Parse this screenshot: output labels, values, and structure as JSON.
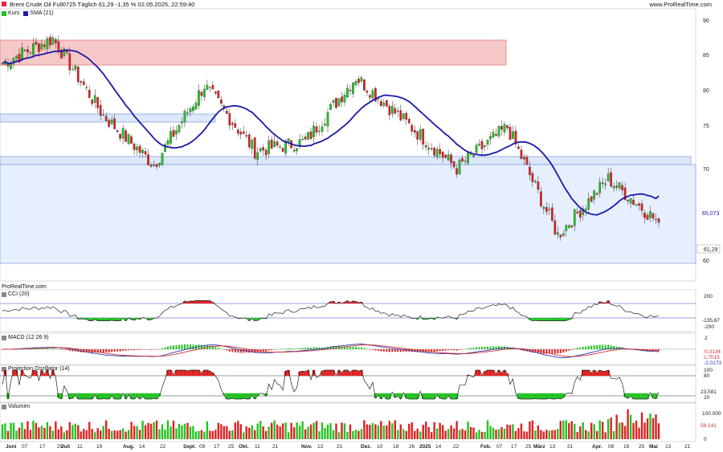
{
  "header": {
    "title": "Brent Crude Oil Full0725 Täglich 61,29 -1,35 % 02.05.2025, 22:59:40",
    "brand": "www.ProRealTime.com",
    "source_label": "ProRealTime.com"
  },
  "colors": {
    "up": "#22c322",
    "down": "#e02020",
    "sma": "#1a1aa8",
    "cci": "#222222",
    "macd": "#2a3aa8",
    "signal": "#d03030",
    "zone_red": "#f7c8c8",
    "zone_blue": "#dde8fb"
  },
  "x_axis": {
    "months": [
      {
        "label": "Juni",
        "ticks": [
          "07",
          "17",
          "25"
        ]
      },
      {
        "label": "Juli",
        "ticks": [
          "11",
          "19"
        ]
      },
      {
        "label": "Aug.",
        "ticks": [
          "14",
          "22"
        ]
      },
      {
        "label": "Sept.",
        "ticks": [
          "09",
          "17",
          "25"
        ]
      },
      {
        "label": "Okt.",
        "ticks": [
          "11",
          "21"
        ]
      },
      {
        "label": "Nov.",
        "ticks": [
          "13",
          "21"
        ]
      },
      {
        "label": "Dez.",
        "ticks": [
          "10",
          "18",
          "26"
        ]
      },
      {
        "label": "2025",
        "ticks": [
          "14",
          "22"
        ]
      },
      {
        "label": "Feb.",
        "ticks": [
          "07",
          "17",
          "25"
        ]
      },
      {
        "label": "März",
        "ticks": [
          "13",
          "21"
        ]
      },
      {
        "label": "Apr.",
        "ticks": [
          "08",
          "16",
          "25"
        ]
      },
      {
        "label": "Mai",
        "ticks": [
          "13",
          "21"
        ]
      }
    ]
  },
  "panels": {
    "price": {
      "legend": [
        {
          "label": "Kurs",
          "color": "#22c322"
        },
        {
          "label": "SMA (21)",
          "color": "#1a1aa8"
        }
      ],
      "y_ticks": [
        "90",
        "85",
        "80",
        "75",
        "70",
        "65",
        "60"
      ],
      "last_price": "61,29",
      "sma_value": "65,073"
    },
    "cci": {
      "legend": "CCI (20)",
      "y_ticks": [
        "200",
        "-200"
      ],
      "value": "-135,67"
    },
    "macd": {
      "legend": "MACD (12 26 9)",
      "y_ticks": [
        "2",
        "0",
        "-2"
      ],
      "values": [
        "-0,3134",
        "1,7015",
        "-2,0173"
      ]
    },
    "projection": {
      "legend": "Projection Oszillator (14)",
      "y_ticks": [
        "100",
        "80",
        "20",
        "0"
      ],
      "value": "23,581"
    },
    "volume": {
      "legend": "Volumen",
      "y_ticks": [
        "100.000",
        "50.000",
        "0"
      ],
      "value": "58.141"
    }
  },
  "chart_data": {
    "type": "candlestick",
    "instrument": "Brent Crude Oil Full0725",
    "period": "daily",
    "x_range": [
      "2025-06-01 (Juni)",
      "2025-05-21"
    ],
    "price_ylim": [
      59,
      91
    ],
    "key_closes": [
      {
        "date": "Juni start",
        "close": 84.0
      },
      {
        "date": "Juli 05",
        "close": 87.5
      },
      {
        "date": "Aug. early",
        "close": 76.5
      },
      {
        "date": "Sept. 10",
        "close": 69.5
      },
      {
        "date": "Okt. 07",
        "close": 80.8
      },
      {
        "date": "Nov. mid",
        "close": 71.5
      },
      {
        "date": "Dez. mid",
        "close": 72.8
      },
      {
        "date": "2025 Jan 15",
        "close": 82.0
      },
      {
        "date": "Feb. mid",
        "close": 75.5
      },
      {
        "date": "März 10",
        "close": 69.0
      },
      {
        "date": "Apr. 02",
        "close": 74.9
      },
      {
        "date": "Apr. 09",
        "close": 59.5
      },
      {
        "date": "Apr. 23",
        "close": 67.5
      },
      {
        "date": "Mai 02",
        "close": 61.29
      }
    ],
    "sma21_last": 65.073,
    "resistance_zone": [
      83.5,
      87.0
    ],
    "support_zone": [
      70.2,
      71.2
    ],
    "support_zone_lower": [
      59.8,
      76.5
    ],
    "cci_last": -135.67,
    "macd_last": [
      -0.3134,
      1.7015,
      -2.0173
    ],
    "projection_last": 23.581,
    "volume_last": 58141
  }
}
